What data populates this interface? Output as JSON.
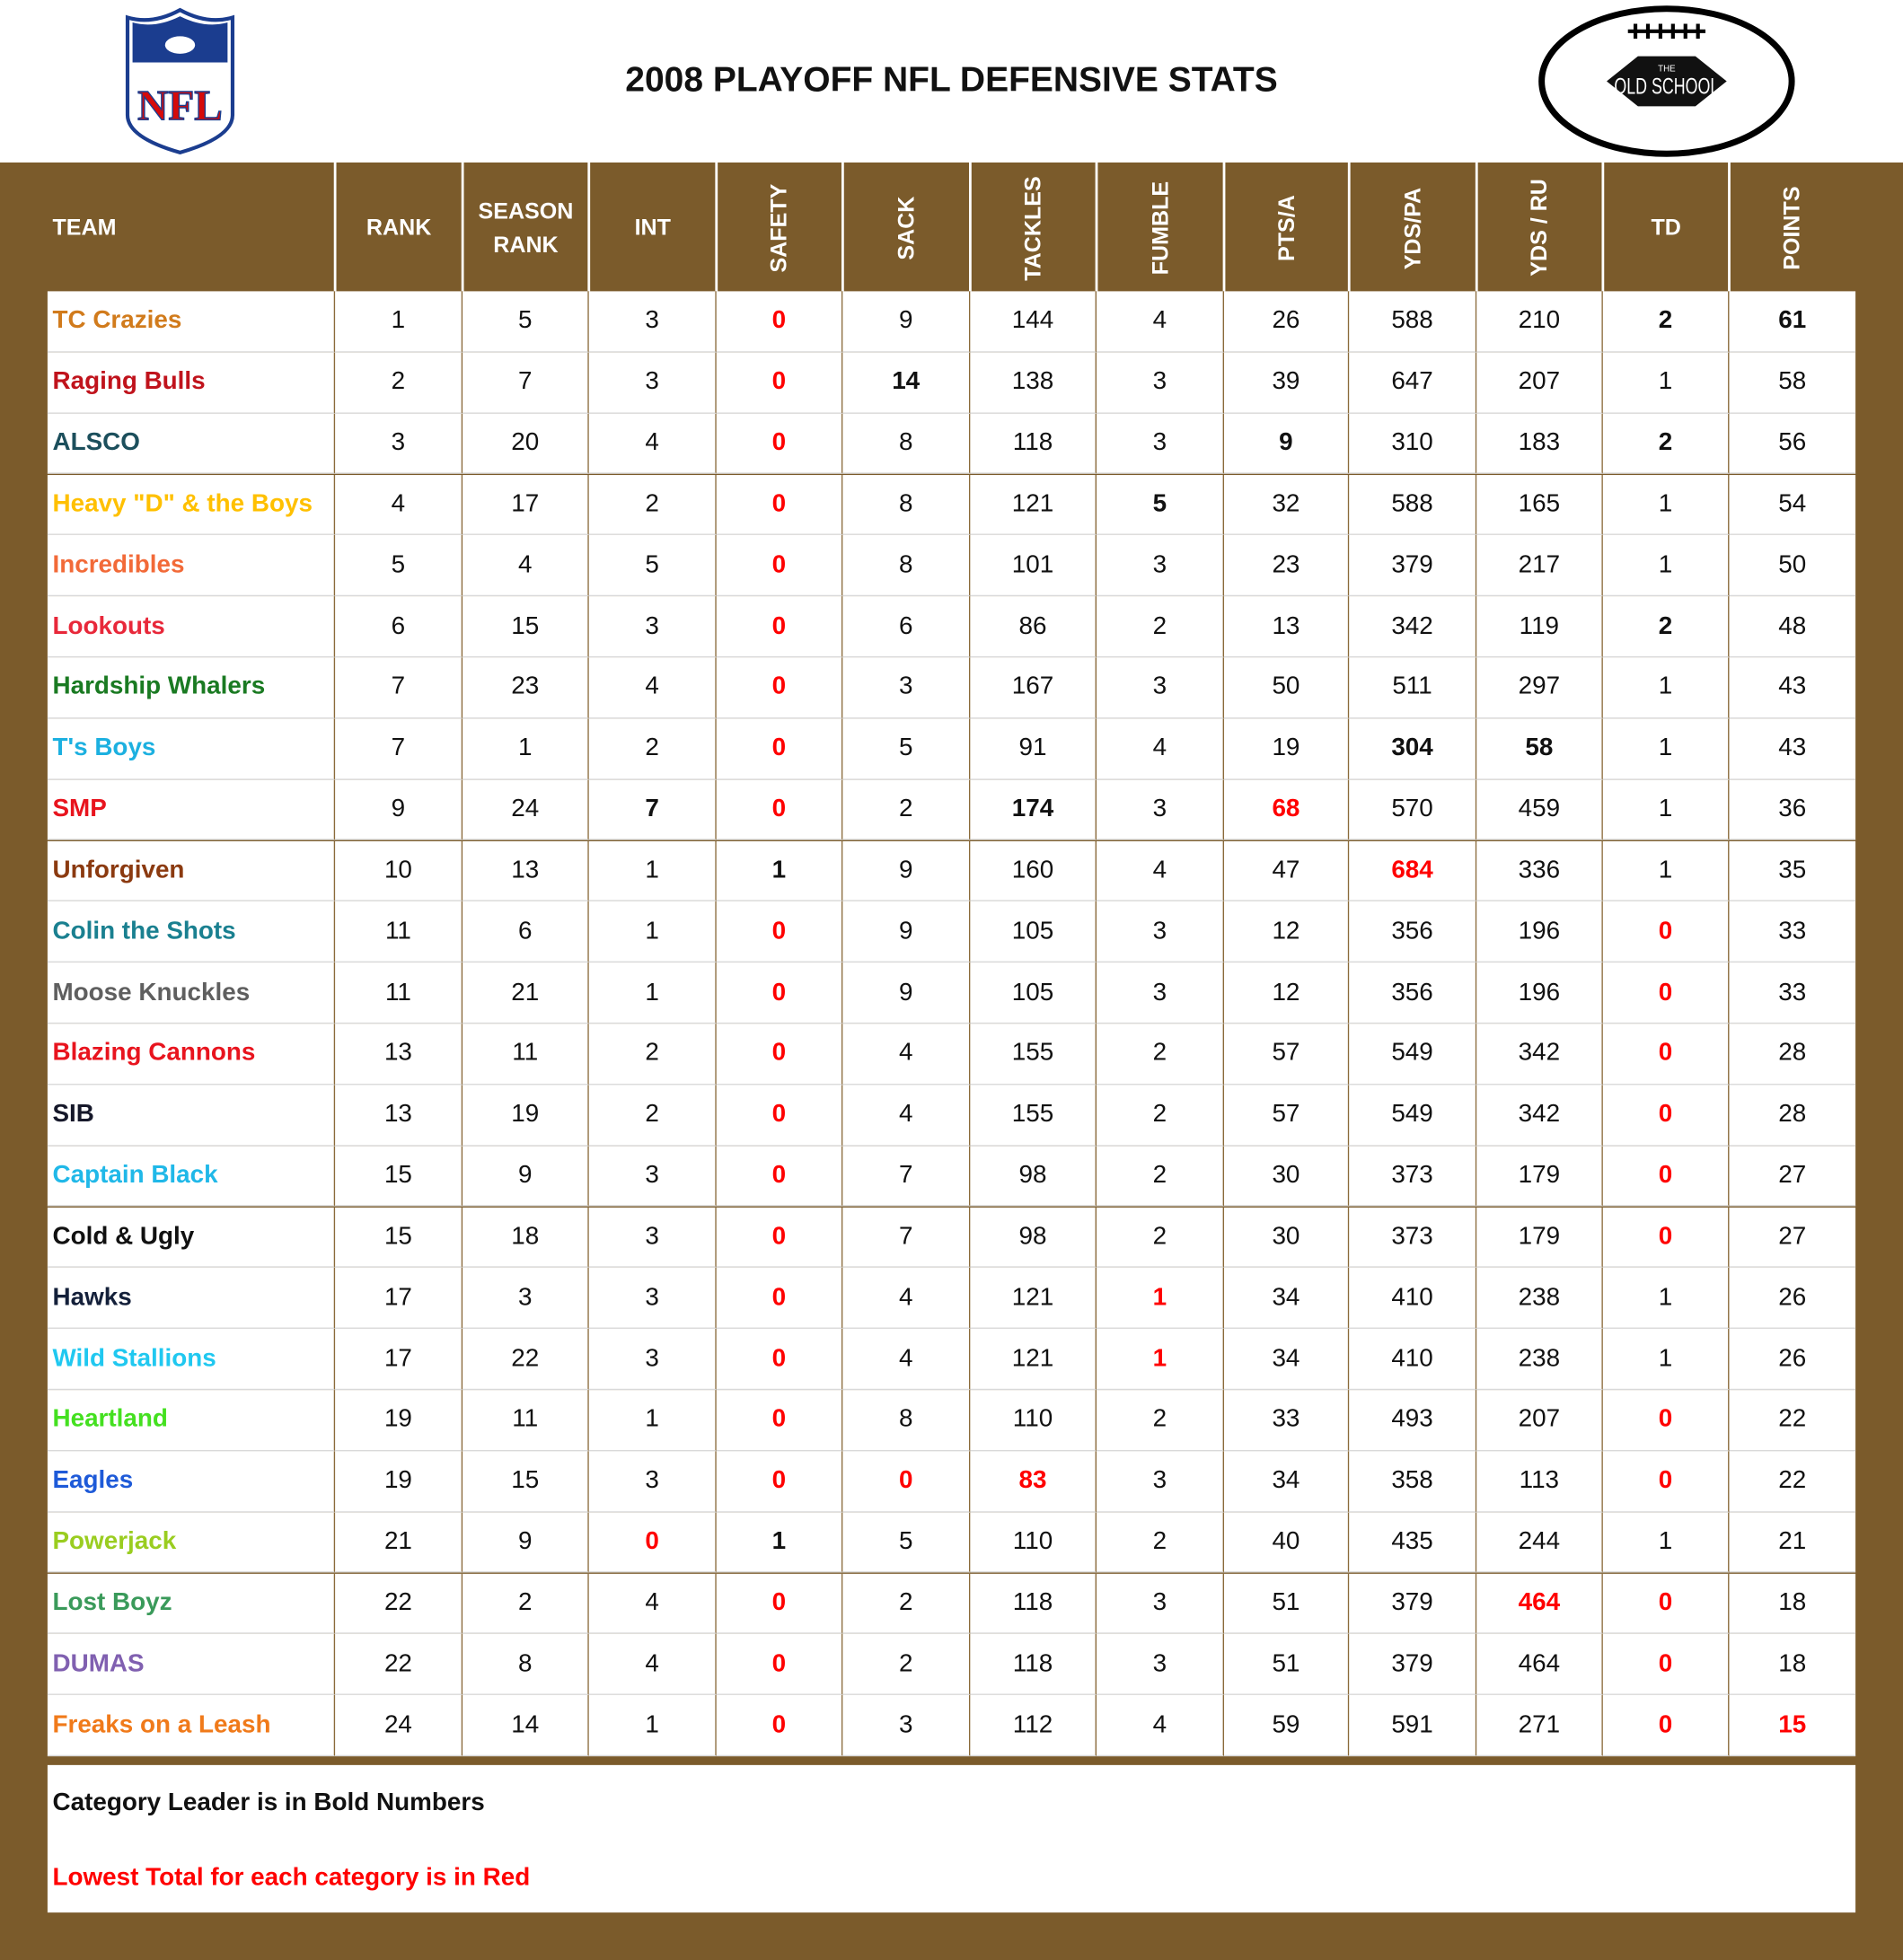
{
  "header": {
    "title": "2008 PLAYOFF NFL DEFENSIVE STATS",
    "logo_left": "NFL",
    "logo_right_top": "THE",
    "logo_right": "OLD SCHOOL"
  },
  "table": {
    "columns": [
      {
        "text": "TEAM",
        "rotated": false
      },
      {
        "text": "RANK",
        "rotated": false
      },
      {
        "text": "SEASON RANK",
        "rotated": false
      },
      {
        "text": "INT",
        "rotated": false
      },
      {
        "text": "SAFETY",
        "rotated": true
      },
      {
        "text": "SACK",
        "rotated": true
      },
      {
        "text": "TACKLES",
        "rotated": true
      },
      {
        "text": "FUMBLE",
        "rotated": true
      },
      {
        "text": "PTS/A",
        "rotated": true
      },
      {
        "text": "YDS/PA",
        "rotated": true
      },
      {
        "text": "YDS / RU",
        "rotated": true
      },
      {
        "text": "TD",
        "rotated": false
      },
      {
        "text": "POINTS",
        "rotated": true
      }
    ],
    "rows": [
      {
        "team": "TC Crazies",
        "color": "#d17b1c",
        "cells": [
          1,
          5,
          3,
          {
            "value": 0,
            "style": "red"
          },
          9,
          144,
          4,
          26,
          588,
          210,
          {
            "value": 2,
            "style": "bold"
          },
          {
            "value": 61,
            "style": "bold"
          }
        ]
      },
      {
        "team": "Raging Bulls",
        "color": "#c0131c",
        "cells": [
          2,
          7,
          3,
          {
            "value": 0,
            "style": "red"
          },
          {
            "value": 14,
            "style": "bold"
          },
          138,
          3,
          39,
          647,
          207,
          1,
          58
        ]
      },
      {
        "team": "ALSCO",
        "color": "#1c4f5c",
        "cells": [
          3,
          20,
          4,
          {
            "value": 0,
            "style": "red"
          },
          8,
          118,
          3,
          {
            "value": 9,
            "style": "bold"
          },
          310,
          183,
          {
            "value": 2,
            "style": "bold"
          },
          56
        ]
      },
      {
        "team": "Heavy \"D\" & the Boys",
        "color": "#ffc000",
        "cells": [
          4,
          17,
          2,
          {
            "value": 0,
            "style": "red"
          },
          8,
          121,
          {
            "value": 5,
            "style": "bold"
          },
          32,
          588,
          165,
          1,
          54
        ]
      },
      {
        "team": "Incredibles",
        "color": "#f26a38",
        "cells": [
          5,
          4,
          5,
          {
            "value": 0,
            "style": "red"
          },
          8,
          101,
          3,
          23,
          379,
          217,
          1,
          50
        ]
      },
      {
        "team": "Lookouts",
        "color": "#e8283a",
        "cells": [
          6,
          15,
          3,
          {
            "value": 0,
            "style": "red"
          },
          6,
          86,
          2,
          13,
          342,
          119,
          {
            "value": 2,
            "style": "bold"
          },
          48
        ]
      },
      {
        "team": "Hardship Whalers",
        "color": "#1a7a22",
        "cells": [
          7,
          23,
          4,
          {
            "value": 0,
            "style": "red"
          },
          3,
          167,
          3,
          50,
          511,
          297,
          1,
          43
        ]
      },
      {
        "team": "T's Boys",
        "color": "#1cb0e0",
        "cells": [
          7,
          1,
          2,
          {
            "value": 0,
            "style": "red"
          },
          5,
          91,
          4,
          19,
          {
            "value": 304,
            "style": "bold"
          },
          {
            "value": 58,
            "style": "bold"
          },
          1,
          43
        ]
      },
      {
        "team": "SMP",
        "color": "#e8141e",
        "cells": [
          9,
          24,
          {
            "value": 7,
            "style": "bold"
          },
          {
            "value": 0,
            "style": "red"
          },
          2,
          {
            "value": 174,
            "style": "bold"
          },
          3,
          {
            "value": 68,
            "style": "red"
          },
          570,
          459,
          1,
          36
        ]
      },
      {
        "team": "Unforgiven",
        "color": "#8b3a10",
        "cells": [
          10,
          13,
          1,
          {
            "value": 1,
            "style": "bold"
          },
          9,
          160,
          4,
          47,
          {
            "value": 684,
            "style": "red"
          },
          336,
          1,
          35
        ]
      },
      {
        "team": "Colin the Shots",
        "color": "#1a8090",
        "cells": [
          11,
          6,
          1,
          {
            "value": 0,
            "style": "red"
          },
          9,
          105,
          3,
          12,
          356,
          196,
          {
            "value": 0,
            "style": "red"
          },
          33
        ]
      },
      {
        "team": "Moose Knuckles",
        "color": "#5f5f5f",
        "cells": [
          11,
          21,
          1,
          {
            "value": 0,
            "style": "red"
          },
          9,
          105,
          3,
          12,
          356,
          196,
          {
            "value": 0,
            "style": "red"
          },
          33
        ]
      },
      {
        "team": "Blazing Cannons",
        "color": "#e8141e",
        "cells": [
          13,
          11,
          2,
          {
            "value": 0,
            "style": "red"
          },
          4,
          155,
          2,
          57,
          549,
          342,
          {
            "value": 0,
            "style": "red"
          },
          28
        ]
      },
      {
        "team": "SIB",
        "color": "#16182a",
        "cells": [
          13,
          19,
          2,
          {
            "value": 0,
            "style": "red"
          },
          4,
          155,
          2,
          57,
          549,
          342,
          {
            "value": 0,
            "style": "red"
          },
          28
        ]
      },
      {
        "team": "Captain Black",
        "color": "#20b8e8",
        "cells": [
          15,
          9,
          3,
          {
            "value": 0,
            "style": "red"
          },
          7,
          98,
          2,
          30,
          373,
          179,
          {
            "value": 0,
            "style": "red"
          },
          27
        ]
      },
      {
        "team": "Cold & Ugly",
        "color": "#111111",
        "cells": [
          15,
          18,
          3,
          {
            "value": 0,
            "style": "red"
          },
          7,
          98,
          2,
          30,
          373,
          179,
          {
            "value": 0,
            "style": "red"
          },
          27
        ]
      },
      {
        "team": "Hawks",
        "color": "#14203a",
        "cells": [
          17,
          3,
          3,
          {
            "value": 0,
            "style": "red"
          },
          4,
          121,
          {
            "value": 1,
            "style": "red"
          },
          34,
          410,
          238,
          1,
          26
        ]
      },
      {
        "team": "Wild Stallions",
        "color": "#20c8f0",
        "cells": [
          17,
          22,
          3,
          {
            "value": 0,
            "style": "red"
          },
          4,
          121,
          {
            "value": 1,
            "style": "red"
          },
          34,
          410,
          238,
          1,
          26
        ]
      },
      {
        "team": "Heartland",
        "color": "#44e020",
        "cells": [
          19,
          11,
          1,
          {
            "value": 0,
            "style": "red"
          },
          8,
          110,
          2,
          33,
          493,
          207,
          {
            "value": 0,
            "style": "red"
          },
          22
        ]
      },
      {
        "team": "Eagles",
        "color": "#1e5ad8",
        "cells": [
          19,
          15,
          3,
          {
            "value": 0,
            "style": "red"
          },
          {
            "value": 0,
            "style": "red"
          },
          {
            "value": 83,
            "style": "red"
          },
          3,
          34,
          358,
          113,
          {
            "value": 0,
            "style": "red"
          },
          22
        ]
      },
      {
        "team": "Powerjack",
        "color": "#9acd20",
        "cells": [
          21,
          9,
          {
            "value": 0,
            "style": "red"
          },
          {
            "value": 1,
            "style": "bold"
          },
          5,
          110,
          2,
          40,
          435,
          244,
          1,
          21
        ]
      },
      {
        "team": "Lost Boyz",
        "color": "#3a9a5a",
        "cells": [
          22,
          2,
          4,
          {
            "value": 0,
            "style": "red"
          },
          2,
          118,
          3,
          51,
          379,
          {
            "value": 464,
            "style": "red"
          },
          {
            "value": 0,
            "style": "red"
          },
          18
        ]
      },
      {
        "team": "DUMAS",
        "color": "#8060b0",
        "cells": [
          22,
          8,
          4,
          {
            "value": 0,
            "style": "red"
          },
          2,
          118,
          3,
          51,
          379,
          464,
          {
            "value": 0,
            "style": "red"
          },
          18
        ]
      },
      {
        "team": "Freaks on a Leash",
        "color": "#f07a1a",
        "cells": [
          24,
          14,
          1,
          {
            "value": 0,
            "style": "red"
          },
          3,
          112,
          4,
          59,
          591,
          271,
          {
            "value": 0,
            "style": "red"
          },
          {
            "value": 15,
            "style": "red"
          }
        ]
      }
    ]
  },
  "footer": {
    "note_bold": "Category Leader is in Bold Numbers",
    "note_red": "Lowest Total for each category is in Red"
  }
}
